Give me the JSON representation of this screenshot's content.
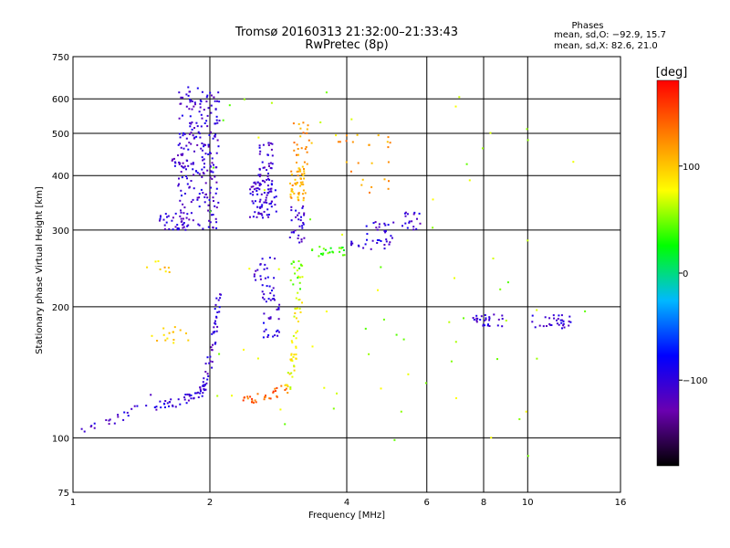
{
  "chart_data": {
    "type": "scatter",
    "title": "Tromsø 20160313 21:32:00–21:33:43",
    "subtitle": "RwPretec (8p)",
    "xlabel": "Frequency [MHz]",
    "ylabel": "Stationary phase Virtual Height [km]",
    "x_scale": "log",
    "y_scale": "log",
    "xlim": [
      1,
      16
    ],
    "ylim": [
      75,
      750
    ],
    "x_ticks": [
      1,
      2,
      4,
      6,
      8,
      10,
      16
    ],
    "y_ticks": [
      75,
      100,
      200,
      300,
      400,
      500,
      600,
      750
    ],
    "x_grid": [
      2,
      4,
      6,
      8,
      10
    ],
    "y_grid": [
      100,
      200,
      300,
      400,
      500,
      600
    ],
    "grid": true,
    "stats": {
      "heading": "Phases",
      "line1": "mean, sd,O: −92.9, 15.7",
      "line2": "mean, sd,X:  82.6, 21.0"
    },
    "colorbar": {
      "label": "[deg]",
      "range": [
        -180,
        180
      ],
      "ticks": [
        100,
        0,
        -100
      ],
      "tick_labels": [
        "100",
        "0",
        "−100"
      ],
      "stops": [
        "#000000",
        "#6a00b0",
        "#0000ff",
        "#00b8ff",
        "#00ff00",
        "#ffff00",
        "#ff8000",
        "#ff0000"
      ]
    },
    "clusters": [
      {
        "freq": [
          1.0,
          1.5
        ],
        "h": [
          103,
          125
        ],
        "phase": -105,
        "n": 22,
        "mode": "rise"
      },
      {
        "freq": [
          1.5,
          2.0
        ],
        "h": [
          118,
          130
        ],
        "phase": -105,
        "n": 35,
        "mode": "rise"
      },
      {
        "freq": [
          1.9,
          2.1
        ],
        "h": [
          125,
          215
        ],
        "phase": -105,
        "n": 60,
        "mode": "rise"
      },
      {
        "freq": [
          1.7,
          2.1
        ],
        "h": [
          300,
          640
        ],
        "phase": -105,
        "n": 230,
        "mode": "box"
      },
      {
        "freq": [
          1.55,
          1.8
        ],
        "h": [
          300,
          330
        ],
        "phase": -105,
        "n": 30,
        "mode": "box"
      },
      {
        "freq": [
          1.65,
          1.8
        ],
        "h": [
          420,
          440
        ],
        "phase": -105,
        "n": 12,
        "mode": "box"
      },
      {
        "freq": [
          2.45,
          2.8
        ],
        "h": [
          320,
          390
        ],
        "phase": -105,
        "n": 80,
        "mode": "box"
      },
      {
        "freq": [
          2.55,
          2.75
        ],
        "h": [
          390,
          480
        ],
        "phase": -105,
        "n": 35,
        "mode": "box"
      },
      {
        "freq": [
          2.6,
          2.85
        ],
        "h": [
          170,
          225
        ],
        "phase": -100,
        "n": 40,
        "mode": "box"
      },
      {
        "freq": [
          2.5,
          2.8
        ],
        "h": [
          225,
          260
        ],
        "phase": -100,
        "n": 18,
        "mode": "box"
      },
      {
        "freq": [
          3.0,
          3.25
        ],
        "h": [
          350,
          420
        ],
        "phase": 110,
        "n": 50,
        "mode": "box"
      },
      {
        "freq": [
          3.0,
          3.25
        ],
        "h": [
          280,
          350
        ],
        "phase": -105,
        "n": 30,
        "mode": "box"
      },
      {
        "freq": [
          3.05,
          3.35
        ],
        "h": [
          420,
          530
        ],
        "phase": 120,
        "n": 25,
        "mode": "box"
      },
      {
        "freq": [
          2.35,
          2.95
        ],
        "h": [
          122,
          130
        ],
        "phase": 140,
        "n": 30,
        "mode": "rise"
      },
      {
        "freq": [
          2.95,
          3.15
        ],
        "h": [
          130,
          215
        ],
        "phase": 80,
        "n": 45,
        "mode": "rise"
      },
      {
        "freq": [
          3.0,
          3.2
        ],
        "h": [
          215,
          255
        ],
        "phase": 50,
        "n": 20,
        "mode": "box"
      },
      {
        "freq": [
          3.3,
          4.0
        ],
        "h": [
          260,
          275
        ],
        "phase": 40,
        "n": 22,
        "mode": "box"
      },
      {
        "freq": [
          4.0,
          5.0
        ],
        "h": [
          270,
          285
        ],
        "phase": -100,
        "n": 20,
        "mode": "box"
      },
      {
        "freq": [
          4.4,
          5.1
        ],
        "h": [
          285,
          315
        ],
        "phase": -105,
        "n": 18,
        "mode": "box"
      },
      {
        "freq": [
          5.3,
          5.85
        ],
        "h": [
          300,
          330
        ],
        "phase": -105,
        "n": 18,
        "mode": "box"
      },
      {
        "freq": [
          3.7,
          5.0
        ],
        "h": [
          360,
          500
        ],
        "phase": 120,
        "n": 25,
        "mode": "box"
      },
      {
        "freq": [
          1.45,
          1.8
        ],
        "h": [
          165,
          180
        ],
        "phase": 100,
        "n": 15,
        "mode": "box"
      },
      {
        "freq": [
          1.45,
          1.7
        ],
        "h": [
          240,
          255
        ],
        "phase": 100,
        "n": 8,
        "mode": "box"
      },
      {
        "freq": [
          7.5,
          9.0
        ],
        "h": [
          180,
          192
        ],
        "phase": -105,
        "n": 28,
        "mode": "box"
      },
      {
        "freq": [
          10.2,
          12.5
        ],
        "h": [
          178,
          192
        ],
        "phase": -105,
        "n": 32,
        "mode": "box"
      },
      {
        "freq": [
          2.0,
          6.0
        ],
        "h": [
          90,
          650
        ],
        "phase": 60,
        "n": 40,
        "mode": "box"
      },
      {
        "freq": [
          6.0,
          14.0
        ],
        "h": [
          90,
          650
        ],
        "phase": 60,
        "n": 30,
        "mode": "box"
      }
    ]
  }
}
